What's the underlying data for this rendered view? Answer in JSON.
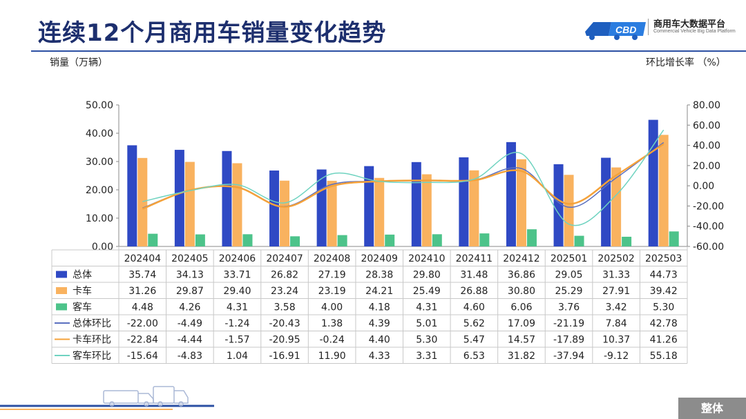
{
  "header": {
    "title": "连续12个月商用车销量变化趋势",
    "logo_name": "商用车大数据平台",
    "logo_sub": "Commercial Vehicle Big Data Platform"
  },
  "footer": {
    "badge": "整体"
  },
  "colors": {
    "total": "#2f49c4",
    "truck": "#f9b25f",
    "bus": "#4dc38a",
    "title": "#1d2f6e"
  },
  "chart_data": {
    "type": "bar",
    "title": "连续12个月商用车销量变化趋势",
    "ylabel": "销量（万辆）",
    "y2label": "环比增长率 （%）",
    "ylim": [
      0,
      50
    ],
    "y2lim": [
      -60,
      80
    ],
    "yticks": [
      "0.00",
      "10.00",
      "20.00",
      "30.00",
      "40.00",
      "50.00"
    ],
    "y2ticks": [
      "-60.00",
      "-40.00",
      "-20.00",
      "0.00",
      "20.00",
      "40.00",
      "60.00",
      "80.00"
    ],
    "categories": [
      "202404",
      "202405",
      "202406",
      "202407",
      "202408",
      "202409",
      "202410",
      "202411",
      "202412",
      "202501",
      "202502",
      "202503"
    ],
    "series": [
      {
        "name": "总体",
        "kind": "bar",
        "values": [
          "35.74",
          "34.13",
          "33.71",
          "26.82",
          "27.19",
          "28.38",
          "29.80",
          "31.48",
          "36.86",
          "29.05",
          "31.33",
          "44.73"
        ]
      },
      {
        "name": "卡车",
        "kind": "bar",
        "values": [
          "31.26",
          "29.87",
          "29.40",
          "23.24",
          "23.19",
          "24.21",
          "25.49",
          "26.88",
          "30.80",
          "25.29",
          "27.91",
          "39.42"
        ]
      },
      {
        "name": "客车",
        "kind": "bar",
        "values": [
          "4.48",
          "4.26",
          "4.31",
          "3.58",
          "4.00",
          "4.18",
          "4.31",
          "4.60",
          "6.06",
          "3.76",
          "3.42",
          "5.30"
        ]
      },
      {
        "name": "总体环比",
        "kind": "line",
        "values": [
          "-22.00",
          "-4.49",
          "-1.24",
          "-20.43",
          "1.38",
          "4.39",
          "5.01",
          "5.62",
          "17.09",
          "-21.19",
          "7.84",
          "42.78"
        ]
      },
      {
        "name": "卡车环比",
        "kind": "line",
        "values": [
          "-22.84",
          "-4.44",
          "-1.57",
          "-20.95",
          "-0.24",
          "4.40",
          "5.30",
          "5.47",
          "14.57",
          "-17.89",
          "10.37",
          "41.26"
        ]
      },
      {
        "name": "客车环比",
        "kind": "line",
        "values": [
          "-15.64",
          "-4.83",
          "1.04",
          "-16.91",
          "11.90",
          "4.33",
          "3.31",
          "6.53",
          "31.82",
          "-37.94",
          "-9.12",
          "55.18"
        ]
      }
    ]
  }
}
